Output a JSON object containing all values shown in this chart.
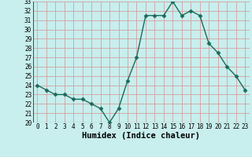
{
  "x": [
    0,
    1,
    2,
    3,
    4,
    5,
    6,
    7,
    8,
    9,
    10,
    11,
    12,
    13,
    14,
    15,
    16,
    17,
    18,
    19,
    20,
    21,
    22,
    23
  ],
  "y": [
    24,
    23.5,
    23,
    23,
    22.5,
    22.5,
    22,
    21.5,
    20,
    21.5,
    24.5,
    27,
    31.5,
    31.5,
    31.5,
    33,
    31.5,
    32,
    31.5,
    28.5,
    27.5,
    26,
    25,
    23.5
  ],
  "xlabel": "Humidex (Indice chaleur)",
  "ylim": [
    20,
    33
  ],
  "xlim": [
    -0.5,
    23.5
  ],
  "yticks": [
    20,
    21,
    22,
    23,
    24,
    25,
    26,
    27,
    28,
    29,
    30,
    31,
    32,
    33
  ],
  "xticks": [
    0,
    1,
    2,
    3,
    4,
    5,
    6,
    7,
    8,
    9,
    10,
    11,
    12,
    13,
    14,
    15,
    16,
    17,
    18,
    19,
    20,
    21,
    22,
    23
  ],
  "xtick_labels": [
    "0",
    "1",
    "2",
    "3",
    "4",
    "5",
    "6",
    "7",
    "8",
    "9",
    "10",
    "11",
    "12",
    "13",
    "14",
    "15",
    "16",
    "17",
    "18",
    "19",
    "20",
    "21",
    "22",
    "23"
  ],
  "line_color": "#1a6b5a",
  "marker": "D",
  "marker_size": 2.5,
  "bg_color": "#c8eeed",
  "grid_color": "#d4a0a0",
  "xlabel_fontsize": 7.5,
  "tick_fontsize": 5.5,
  "line_width": 1.0
}
